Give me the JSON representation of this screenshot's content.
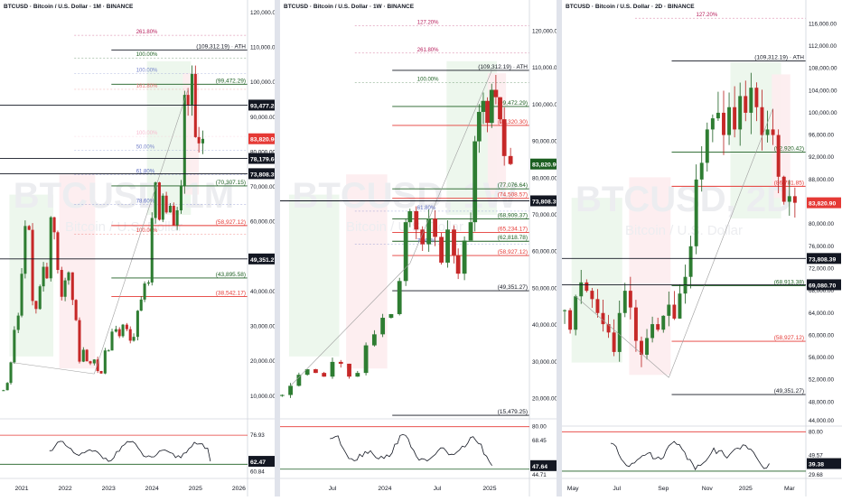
{
  "chart_data": [
    {
      "type": "candlestick",
      "title": "BTCUSD · Bitcoin / U.S. Dollar · 1M · BINANCE",
      "watermark": "BTCUSD, 1M",
      "watermark_sub": "Bitcoin / U.S. Dollar",
      "ylim": [
        4000,
        120000
      ],
      "y_ticks": [
        10000,
        20000,
        30000,
        40000,
        50000,
        60000,
        70000,
        80000,
        90000,
        100000,
        110000,
        120000
      ],
      "y_tick_labels": [
        "10,000.00",
        "20,000.00",
        "30,000.00",
        "40,000.00",
        "50,000.00",
        "60,000.00",
        "70,000.00",
        "80,000.00",
        "90,000.00",
        "100,000.00",
        "110,000.00",
        "120,000.00"
      ],
      "x_range": [
        2020.5,
        2026.2
      ],
      "x_ticks": [
        2021,
        2022,
        2023,
        2024,
        2025,
        2026
      ],
      "x_tick_labels": [
        "2021",
        "2022",
        "2023",
        "2024",
        "2025",
        "2026"
      ],
      "series_close": [
        [
          2020.58,
          11700
        ],
        [
          2020.67,
          13800
        ],
        [
          2020.75,
          19700
        ],
        [
          2020.83,
          29000
        ],
        [
          2020.92,
          33100
        ],
        [
          2021.0,
          45100
        ],
        [
          2021.08,
          58800
        ],
        [
          2021.17,
          57700
        ],
        [
          2021.25,
          37300
        ],
        [
          2021.33,
          35000
        ],
        [
          2021.42,
          41500
        ],
        [
          2021.5,
          47100
        ],
        [
          2021.58,
          43800
        ],
        [
          2021.67,
          61300
        ],
        [
          2021.75,
          57000
        ],
        [
          2021.83,
          46200
        ],
        [
          2021.92,
          38500
        ],
        [
          2022.0,
          43200
        ],
        [
          2022.08,
          45500
        ],
        [
          2022.17,
          37600
        ],
        [
          2022.25,
          31800
        ],
        [
          2022.33,
          19900
        ],
        [
          2022.42,
          23300
        ],
        [
          2022.5,
          20000
        ],
        [
          2022.58,
          19400
        ],
        [
          2022.67,
          20500
        ],
        [
          2022.75,
          17200
        ],
        [
          2022.83,
          16500
        ],
        [
          2022.92,
          23100
        ],
        [
          2023.0,
          23100
        ],
        [
          2023.08,
          28500
        ],
        [
          2023.17,
          29200
        ],
        [
          2023.25,
          27200
        ],
        [
          2023.33,
          30500
        ],
        [
          2023.42,
          29200
        ],
        [
          2023.5,
          25900
        ],
        [
          2023.58,
          27000
        ],
        [
          2023.67,
          34500
        ],
        [
          2023.75,
          37700
        ],
        [
          2023.83,
          42300
        ],
        [
          2023.92,
          42600
        ],
        [
          2024.0,
          61100
        ],
        [
          2024.08,
          71300
        ],
        [
          2024.17,
          60600
        ],
        [
          2024.25,
          67500
        ],
        [
          2024.33,
          62700
        ],
        [
          2024.42,
          64600
        ],
        [
          2024.5,
          59000
        ],
        [
          2024.58,
          63300
        ],
        [
          2024.67,
          70300
        ],
        [
          2024.75,
          96400
        ],
        [
          2024.83,
          93400
        ],
        [
          2024.92,
          102400
        ],
        [
          2025.0,
          84300
        ],
        [
          2025.08,
          82500
        ],
        [
          2025.17,
          83800
        ]
      ],
      "last_price": 83820.9,
      "last_price_label": "83,820.90",
      "levels": [
        {
          "value": 109312.19,
          "label": "(109,312.19) · ATH",
          "color": "#131722"
        },
        {
          "value": 99472.29,
          "label": "(99,472.29)",
          "color": "#1b5e20"
        },
        {
          "value": 70307.15,
          "label": "(70,307.15)",
          "color": "#1b5e20"
        },
        {
          "value": 58927.12,
          "label": "(58,927.12)",
          "color": "#e53935"
        },
        {
          "value": 43895.58,
          "label": "(43,895.58)",
          "color": "#1b5e20"
        },
        {
          "value": 38542.17,
          "label": "(38,542.17)",
          "color": "#e53935"
        }
      ],
      "fib_labels": [
        {
          "value": 113500,
          "label": "261.80%",
          "color": "#b71c5b"
        },
        {
          "value": 107000,
          "label": "100.00%",
          "color": "#1b5e20"
        },
        {
          "value": 102500,
          "label": "100.00%",
          "color": "#7986cb"
        },
        {
          "value": 98000,
          "label": "161.80%",
          "color": "#e57373"
        },
        {
          "value": 84500,
          "label": "100.00%",
          "color": "#f8bbd0"
        },
        {
          "value": 80500,
          "label": "50.00%",
          "color": "#7986cb"
        },
        {
          "value": 73500,
          "label": "61.80%",
          "color": "#5c6bc0"
        },
        {
          "value": 65000,
          "label": "78.60%",
          "color": "#5c6bc0"
        },
        {
          "value": 56500,
          "label": "100.00%",
          "color": "#e53935"
        }
      ],
      "price_tags": [
        {
          "value": 93477.25,
          "label": "93,477.25",
          "bg": "#131722"
        },
        {
          "value": 78179.66,
          "label": "78,179.66",
          "bg": "#131722"
        },
        {
          "value": 73808.39,
          "label": "73,808.39",
          "bg": "#131722"
        },
        {
          "value": 49351.27,
          "label": "49,351.27",
          "bg": "#131722"
        }
      ],
      "rsi": {
        "ylim": [
          55,
          85
        ],
        "upper": 76.93,
        "lower": 60.84,
        "value": 62.47,
        "upper_label": "76.93",
        "lower_label": "60.84",
        "value_label": "62.47"
      }
    },
    {
      "type": "candlestick",
      "title": "BTCUSD · Bitcoin / U.S. Dollar · 1W · BINANCE",
      "watermark": "BTCUSD, 1W",
      "watermark_sub": "Bitcoin / U.S. Dollar",
      "ylim": [
        15000,
        125000
      ],
      "y_ticks": [
        20000,
        30000,
        40000,
        50000,
        60000,
        70000,
        80000,
        90000,
        100000,
        110000,
        120000
      ],
      "y_tick_labels": [
        "20,000.00",
        "30,000.00",
        "40,000.00",
        "50,000.00",
        "60,000.00",
        "70,000.00",
        "80,000.00",
        "90,000.00",
        "100,000.00",
        "110,000.00",
        "120,000.00"
      ],
      "x_range": [
        2023.0,
        2025.38
      ],
      "x_ticks": [
        2023.5,
        2024.0,
        2024.5,
        2025.0
      ],
      "x_tick_labels": [
        "Jul",
        "2024",
        "Jul",
        "2025"
      ],
      "series_close": [
        [
          2023.02,
          21000
        ],
        [
          2023.1,
          23500
        ],
        [
          2023.18,
          26500
        ],
        [
          2023.26,
          28000
        ],
        [
          2023.34,
          27000
        ],
        [
          2023.42,
          26000
        ],
        [
          2023.5,
          30000
        ],
        [
          2023.58,
          29500
        ],
        [
          2023.66,
          26000
        ],
        [
          2023.74,
          27000
        ],
        [
          2023.82,
          34500
        ],
        [
          2023.9,
          37500
        ],
        [
          2023.98,
          42000
        ],
        [
          2024.06,
          43000
        ],
        [
          2024.14,
          52000
        ],
        [
          2024.2,
          68000
        ],
        [
          2024.24,
          71000
        ],
        [
          2024.3,
          66000
        ],
        [
          2024.36,
          62000
        ],
        [
          2024.42,
          69000
        ],
        [
          2024.48,
          64000
        ],
        [
          2024.54,
          57000
        ],
        [
          2024.6,
          66000
        ],
        [
          2024.66,
          59000
        ],
        [
          2024.7,
          54000
        ],
        [
          2024.76,
          63000
        ],
        [
          2024.82,
          68000
        ],
        [
          2024.86,
          90000
        ],
        [
          2024.9,
          98000
        ],
        [
          2024.94,
          101000
        ],
        [
          2024.98,
          95000
        ],
        [
          2025.02,
          104000
        ],
        [
          2025.06,
          102000
        ],
        [
          2025.1,
          96000
        ],
        [
          2025.14,
          86000
        ],
        [
          2025.2,
          83820
        ]
      ],
      "last_price": 83820.9,
      "last_price_label": "83,820.90",
      "levels": [
        {
          "value": 109312.19,
          "label": "(109,312.19) · ATH",
          "color": "#131722"
        },
        {
          "value": 99472.29,
          "label": "(99,472.29)",
          "color": "#1b5e20"
        },
        {
          "value": 94320.3,
          "label": "(94,320.30)",
          "color": "#e53935"
        },
        {
          "value": 77076.64,
          "label": "(77,076.64)",
          "color": "#1b5e20"
        },
        {
          "value": 74508.57,
          "label": "(74,508.57)",
          "color": "#e53935"
        },
        {
          "value": 68909.37,
          "label": "(68,909.37)",
          "color": "#1b5e20"
        },
        {
          "value": 65234.17,
          "label": "(65,234.17)",
          "color": "#e53935"
        },
        {
          "value": 62818.78,
          "label": "(62,818.78)",
          "color": "#1b5e20"
        },
        {
          "value": 58927.12,
          "label": "(58,927.12)",
          "color": "#e53935"
        },
        {
          "value": 49351.27,
          "label": "(49,351.27)",
          "color": "#131722"
        },
        {
          "value": 15479.25,
          "label": "(15,479.25)",
          "color": "#131722"
        }
      ],
      "fib_labels": [
        {
          "value": 121500,
          "label": "127.20%",
          "color": "#b71c5b"
        },
        {
          "value": 114000,
          "label": "261.80%",
          "color": "#b71c5b"
        },
        {
          "value": 106000,
          "label": "100.00%",
          "color": "#1b5e20"
        },
        {
          "value": 71000,
          "label": "61.80%",
          "color": "#5c6bc0"
        },
        {
          "value": 62000,
          "label": "78.60%",
          "color": "#5c6bc0"
        }
      ],
      "price_tags": [
        {
          "value": 73808.39,
          "label": "73,808.39",
          "bg": "#131722"
        }
      ],
      "rsi": {
        "ylim": [
          40,
          85
        ],
        "upper": 80.0,
        "lower": 44.71,
        "value": 47.64,
        "upper_label": "80.00",
        "mid_label": "68.45",
        "mid": 68.45,
        "lower_label": "44.71",
        "value_label": "47.64"
      }
    },
    {
      "type": "candlestick",
      "title": "BTCUSD · Bitcoin / U.S. Dollar · 2D · BINANCE",
      "watermark": "BTCUSD, 2D",
      "watermark_sub": "Bitcoin / U.S. Dollar",
      "ylim": [
        44000,
        118000
      ],
      "y_ticks": [
        48000,
        52000,
        56000,
        60000,
        64000,
        68000,
        72000,
        76000,
        80000,
        84000,
        88000,
        92000,
        96000,
        100000,
        104000,
        108000,
        112000,
        116000
      ],
      "y_tick_labels": [
        "48,000.00",
        "52,000.00",
        "56,000.00",
        "60,000.00",
        "64,000.00",
        "68,000.00",
        "72,000.00",
        "76,000.00",
        "80,000.00",
        "84,000.00",
        "88,000.00",
        "92,000.00",
        "96,000.00",
        "100,000.00",
        "104,000.00",
        "108,000.00",
        "112,000.00",
        "116,000.00"
      ],
      "extra_tick": {
        "value": 44000,
        "label": "44,000.00"
      },
      "x_range": [
        2024.33,
        2025.22
      ],
      "x_ticks": [
        2024.37,
        2024.53,
        2024.7,
        2024.86,
        2025.0,
        2025.16
      ],
      "x_tick_labels": [
        "May",
        "Jul",
        "Sep",
        "Nov",
        "2025",
        "Mar"
      ],
      "series_close": [
        [
          2024.34,
          64500
        ],
        [
          2024.36,
          61000
        ],
        [
          2024.38,
          67000
        ],
        [
          2024.4,
          69500
        ],
        [
          2024.42,
          68000
        ],
        [
          2024.44,
          66500
        ],
        [
          2024.46,
          64000
        ],
        [
          2024.48,
          62000
        ],
        [
          2024.5,
          60500
        ],
        [
          2024.52,
          57000
        ],
        [
          2024.54,
          64000
        ],
        [
          2024.56,
          68000
        ],
        [
          2024.58,
          65000
        ],
        [
          2024.6,
          59000
        ],
        [
          2024.62,
          56500
        ],
        [
          2024.64,
          59500
        ],
        [
          2024.66,
          62000
        ],
        [
          2024.68,
          61000
        ],
        [
          2024.7,
          63500
        ],
        [
          2024.72,
          65500
        ],
        [
          2024.74,
          63000
        ],
        [
          2024.76,
          67500
        ],
        [
          2024.78,
          70500
        ],
        [
          2024.8,
          76000
        ],
        [
          2024.82,
          88000
        ],
        [
          2024.84,
          91000
        ],
        [
          2024.86,
          97000
        ],
        [
          2024.88,
          99000
        ],
        [
          2024.9,
          100000
        ],
        [
          2024.92,
          96000
        ],
        [
          2024.94,
          101000
        ],
        [
          2024.96,
          97000
        ],
        [
          2024.98,
          103000
        ],
        [
          2025.0,
          100000
        ],
        [
          2025.02,
          104500
        ],
        [
          2025.04,
          101000
        ],
        [
          2025.06,
          96000
        ],
        [
          2025.08,
          97000
        ],
        [
          2025.1,
          96000
        ],
        [
          2025.12,
          88500
        ],
        [
          2025.14,
          84000
        ],
        [
          2025.16,
          85000
        ],
        [
          2025.18,
          83820
        ]
      ],
      "last_price": 83820.9,
      "last_price_label": "83,820.90",
      "levels": [
        {
          "value": 109312.19,
          "label": "(109,312.19) · ATH",
          "color": "#131722"
        },
        {
          "value": 92920.42,
          "label": "(92,920.42)",
          "color": "#1b5e20"
        },
        {
          "value": 86781.85,
          "label": "(86,781.85)",
          "color": "#e53935"
        },
        {
          "value": 68913.38,
          "label": "(68,913.38)",
          "color": "#1b5e20"
        },
        {
          "value": 58927.12,
          "label": "(58,927.12)",
          "color": "#e53935"
        },
        {
          "value": 49351.27,
          "label": "(49,351.27)",
          "color": "#131722"
        }
      ],
      "fib_labels": [
        {
          "value": 117000,
          "label": "127.20%",
          "color": "#b71c5b"
        }
      ],
      "price_tags": [
        {
          "value": 73808.39,
          "label": "73,808.39",
          "bg": "#131722"
        },
        {
          "value": 69080.7,
          "label": "69,080.70",
          "bg": "#131722"
        }
      ],
      "rsi": {
        "ylim": [
          25,
          85
        ],
        "upper": 80.0,
        "lower": 29.68,
        "value": 39.38,
        "mid": 49.57,
        "upper_label": "80.00",
        "mid_label": "49.57",
        "lower_label": "29.68",
        "value_label": "39.38"
      }
    }
  ],
  "colors": {
    "up": "#089981",
    "up_body": "#1b5e20",
    "down": "#e53935",
    "down_body": "#b71c1c",
    "tag_red": "#e53935",
    "tag_green": "#1b5e20"
  }
}
